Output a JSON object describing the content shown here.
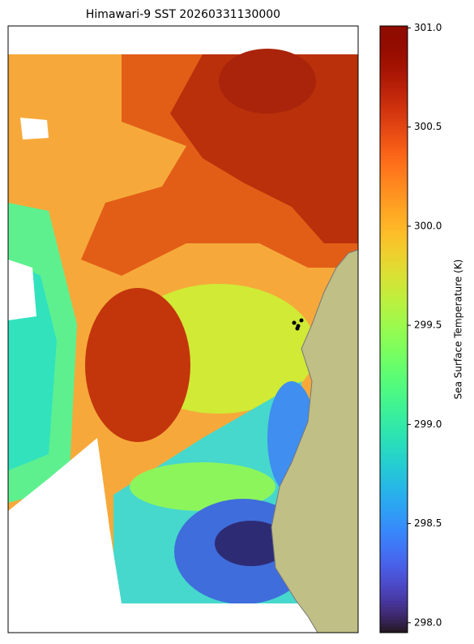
{
  "chart_data": {
    "type": "colormap-map",
    "title": "Himawari-9 SST 20260331130000",
    "colorbar_label": "Sea Surface Temperature (K)",
    "colormap": "turbo",
    "clim": [
      297.95,
      301.01
    ],
    "cticks": [
      {
        "value": 298,
        "label": "298.0"
      },
      298.5,
      {
        "value": 299,
        "label": "299.0"
      },
      299.5,
      {
        "value": 300,
        "label": "300.0"
      },
      300.5,
      {
        "value": 301,
        "label": "301.0"
      }
    ]
  }
}
